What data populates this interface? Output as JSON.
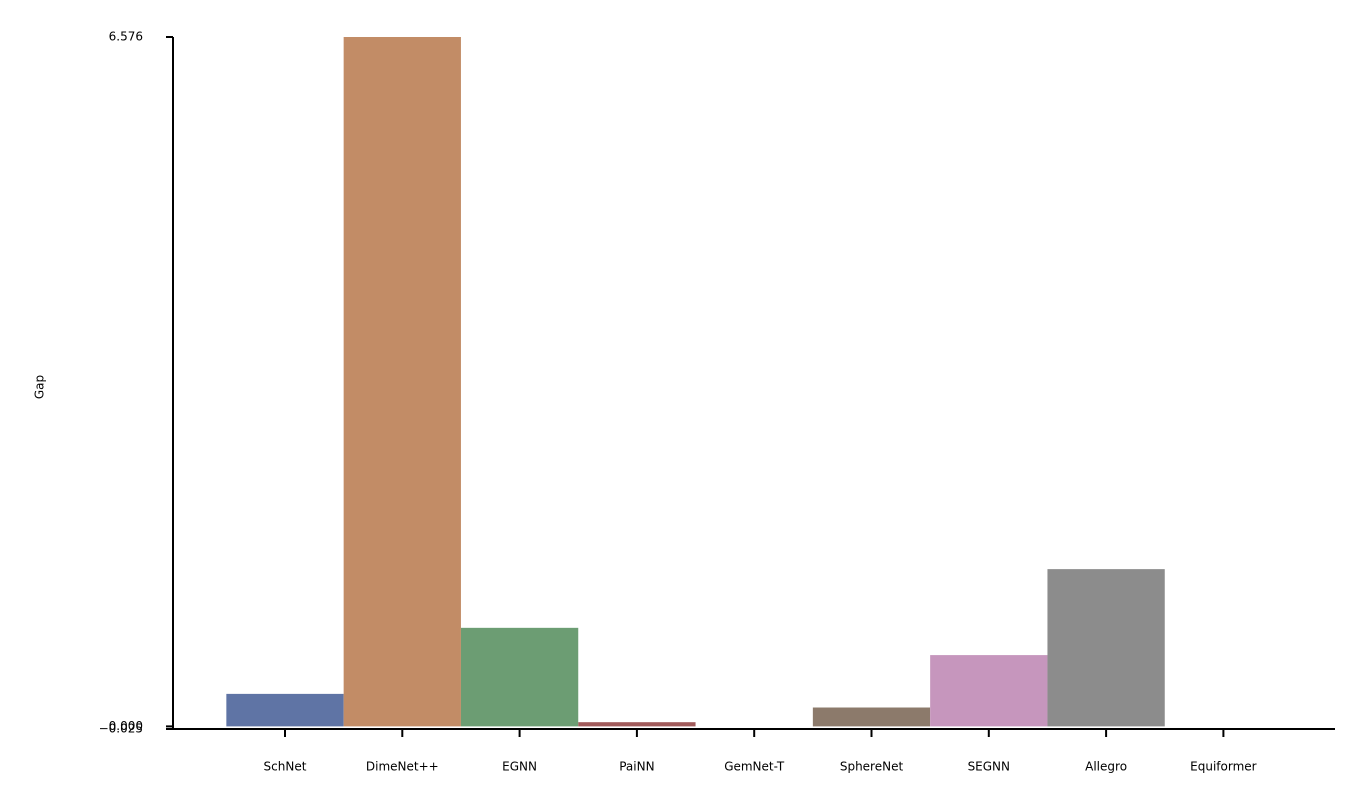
{
  "chart_data": {
    "type": "bar",
    "ylabel": "Gap",
    "categories": [
      "SchNet",
      "DimeNet++",
      "EGNN",
      "PaiNN",
      "GemNet-T",
      "SphereNet",
      "SEGNN",
      "Allegro",
      "Equiformer"
    ],
    "values": [
      0.31,
      6.576,
      0.94,
      0.04,
      0,
      0.18,
      0.68,
      1.5,
      0
    ],
    "colors": [
      "#5f74a5",
      "#c28c66",
      "#6c9d73",
      "#a05a5a",
      "#8172b3",
      "#8c7a6b",
      "#c696bd",
      "#8c8c8c",
      "#ccb974"
    ],
    "ylim": [
      -0.025,
      6.576
    ],
    "yticks": [
      {
        "value": -0.025,
        "label": "−0.025"
      },
      {
        "value": 0,
        "label": "0.000"
      },
      {
        "value": 6.576,
        "label": "6.576"
      }
    ]
  }
}
